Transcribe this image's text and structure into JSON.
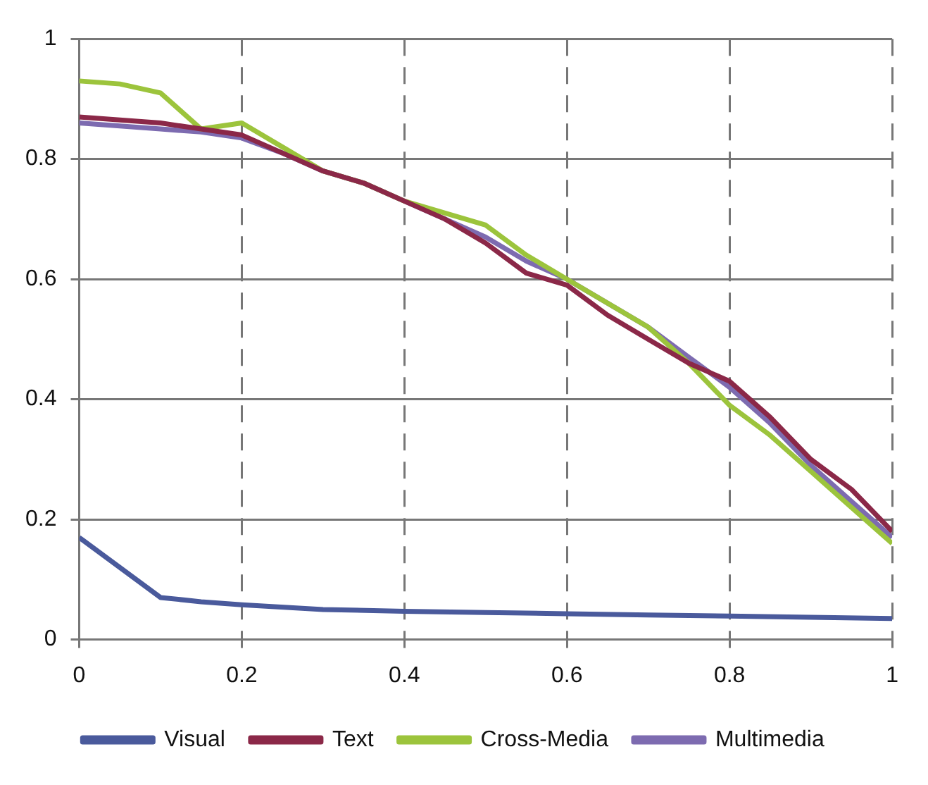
{
  "chart_data": {
    "type": "line",
    "xlim": [
      0,
      1
    ],
    "ylim": [
      0,
      1
    ],
    "xticks": [
      0,
      0.2,
      0.4,
      0.6,
      0.8,
      1
    ],
    "yticks": [
      0,
      0.2,
      0.4,
      0.6,
      0.8,
      1
    ],
    "grid": true,
    "line_style": "solid",
    "marker": "none",
    "legend": "bottom",
    "series": [
      {
        "name": "Visual",
        "color": "#4a5a9c",
        "x": [
          0,
          0.1,
          0.15,
          0.2,
          0.3,
          0.4,
          0.5,
          0.6,
          0.7,
          0.8,
          0.9,
          1
        ],
        "values": [
          0.17,
          0.07,
          0.063,
          0.058,
          0.05,
          0.047,
          0.045,
          0.043,
          0.041,
          0.039,
          0.037,
          0.035
        ]
      },
      {
        "name": "Text",
        "color": "#8b2848",
        "x": [
          0,
          0.05,
          0.1,
          0.15,
          0.2,
          0.25,
          0.3,
          0.35,
          0.4,
          0.45,
          0.5,
          0.55,
          0.6,
          0.65,
          0.7,
          0.75,
          0.8,
          0.85,
          0.9,
          0.95,
          1
        ],
        "values": [
          0.87,
          0.865,
          0.86,
          0.85,
          0.84,
          0.81,
          0.78,
          0.76,
          0.73,
          0.7,
          0.66,
          0.61,
          0.59,
          0.54,
          0.5,
          0.46,
          0.43,
          0.37,
          0.3,
          0.25,
          0.18
        ]
      },
      {
        "name": "Cross-Media",
        "color": "#9cc43c",
        "x": [
          0,
          0.05,
          0.1,
          0.15,
          0.2,
          0.25,
          0.3,
          0.35,
          0.4,
          0.45,
          0.5,
          0.55,
          0.6,
          0.65,
          0.7,
          0.75,
          0.8,
          0.85,
          0.9,
          0.95,
          1
        ],
        "values": [
          0.93,
          0.925,
          0.91,
          0.85,
          0.86,
          0.82,
          0.78,
          0.76,
          0.73,
          0.71,
          0.69,
          0.64,
          0.6,
          0.56,
          0.52,
          0.46,
          0.39,
          0.34,
          0.28,
          0.22,
          0.16
        ]
      },
      {
        "name": "Multimedia",
        "color": "#7d6bb0",
        "x": [
          0,
          0.05,
          0.1,
          0.15,
          0.2,
          0.25,
          0.3,
          0.35,
          0.4,
          0.45,
          0.5,
          0.55,
          0.6,
          0.65,
          0.7,
          0.75,
          0.8,
          0.85,
          0.9,
          0.95,
          1
        ],
        "values": [
          0.86,
          0.855,
          0.85,
          0.845,
          0.835,
          0.81,
          0.78,
          0.76,
          0.73,
          0.7,
          0.67,
          0.63,
          0.6,
          0.56,
          0.52,
          0.47,
          0.42,
          0.36,
          0.29,
          0.23,
          0.17
        ]
      }
    ]
  }
}
